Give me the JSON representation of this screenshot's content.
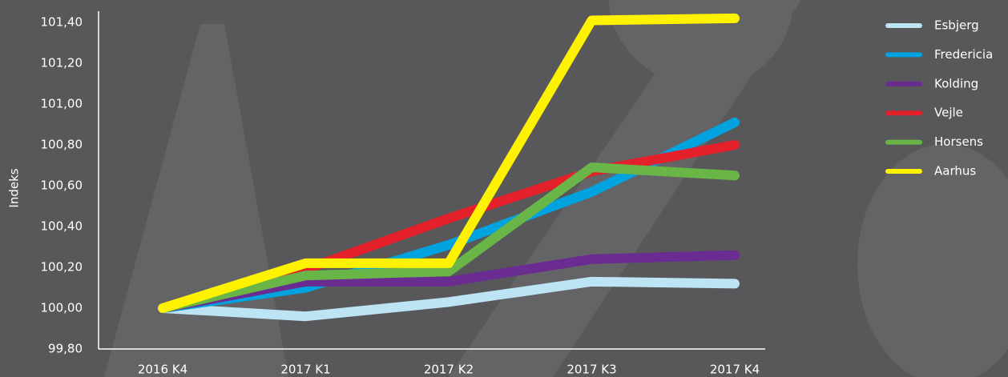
{
  "chart_data": {
    "type": "line",
    "ylabel": "Indeks",
    "categories": [
      "2016 K4",
      "2017 K1",
      "2017 K2",
      "2017 K3",
      "2017 K4"
    ],
    "ylim": [
      99.8,
      101.4
    ],
    "yticks": [
      {
        "value": 99.8,
        "label": "99,80"
      },
      {
        "value": 100.0,
        "label": "100,00"
      },
      {
        "value": 100.2,
        "label": "100,20"
      },
      {
        "value": 100.4,
        "label": "100,40"
      },
      {
        "value": 100.6,
        "label": "100,60"
      },
      {
        "value": 100.8,
        "label": "100,80"
      },
      {
        "value": 101.0,
        "label": "101,00"
      },
      {
        "value": 101.2,
        "label": "101,20"
      },
      {
        "value": 101.4,
        "label": "101,40"
      }
    ],
    "legend": "top-right",
    "series": [
      {
        "name": "Esbjerg",
        "color": "#bde4f4",
        "values": [
          100.0,
          99.96,
          100.03,
          100.13,
          100.12
        ]
      },
      {
        "name": "Fredericia",
        "color": "#00a3e0",
        "values": [
          100.0,
          100.1,
          100.31,
          100.57,
          100.91
        ]
      },
      {
        "name": "Kolding",
        "color": "#6a2c91",
        "values": [
          100.0,
          100.13,
          100.13,
          100.24,
          100.26
        ]
      },
      {
        "name": "Vejle",
        "color": "#e4202b",
        "values": [
          100.0,
          100.19,
          100.44,
          100.67,
          100.8
        ]
      },
      {
        "name": "Horsens",
        "color": "#6ab547",
        "values": [
          100.0,
          100.16,
          100.18,
          100.69,
          100.65
        ]
      },
      {
        "name": "Aarhus",
        "color": "#fff200",
        "values": [
          100.0,
          100.22,
          100.22,
          101.41,
          101.42
        ]
      }
    ]
  }
}
